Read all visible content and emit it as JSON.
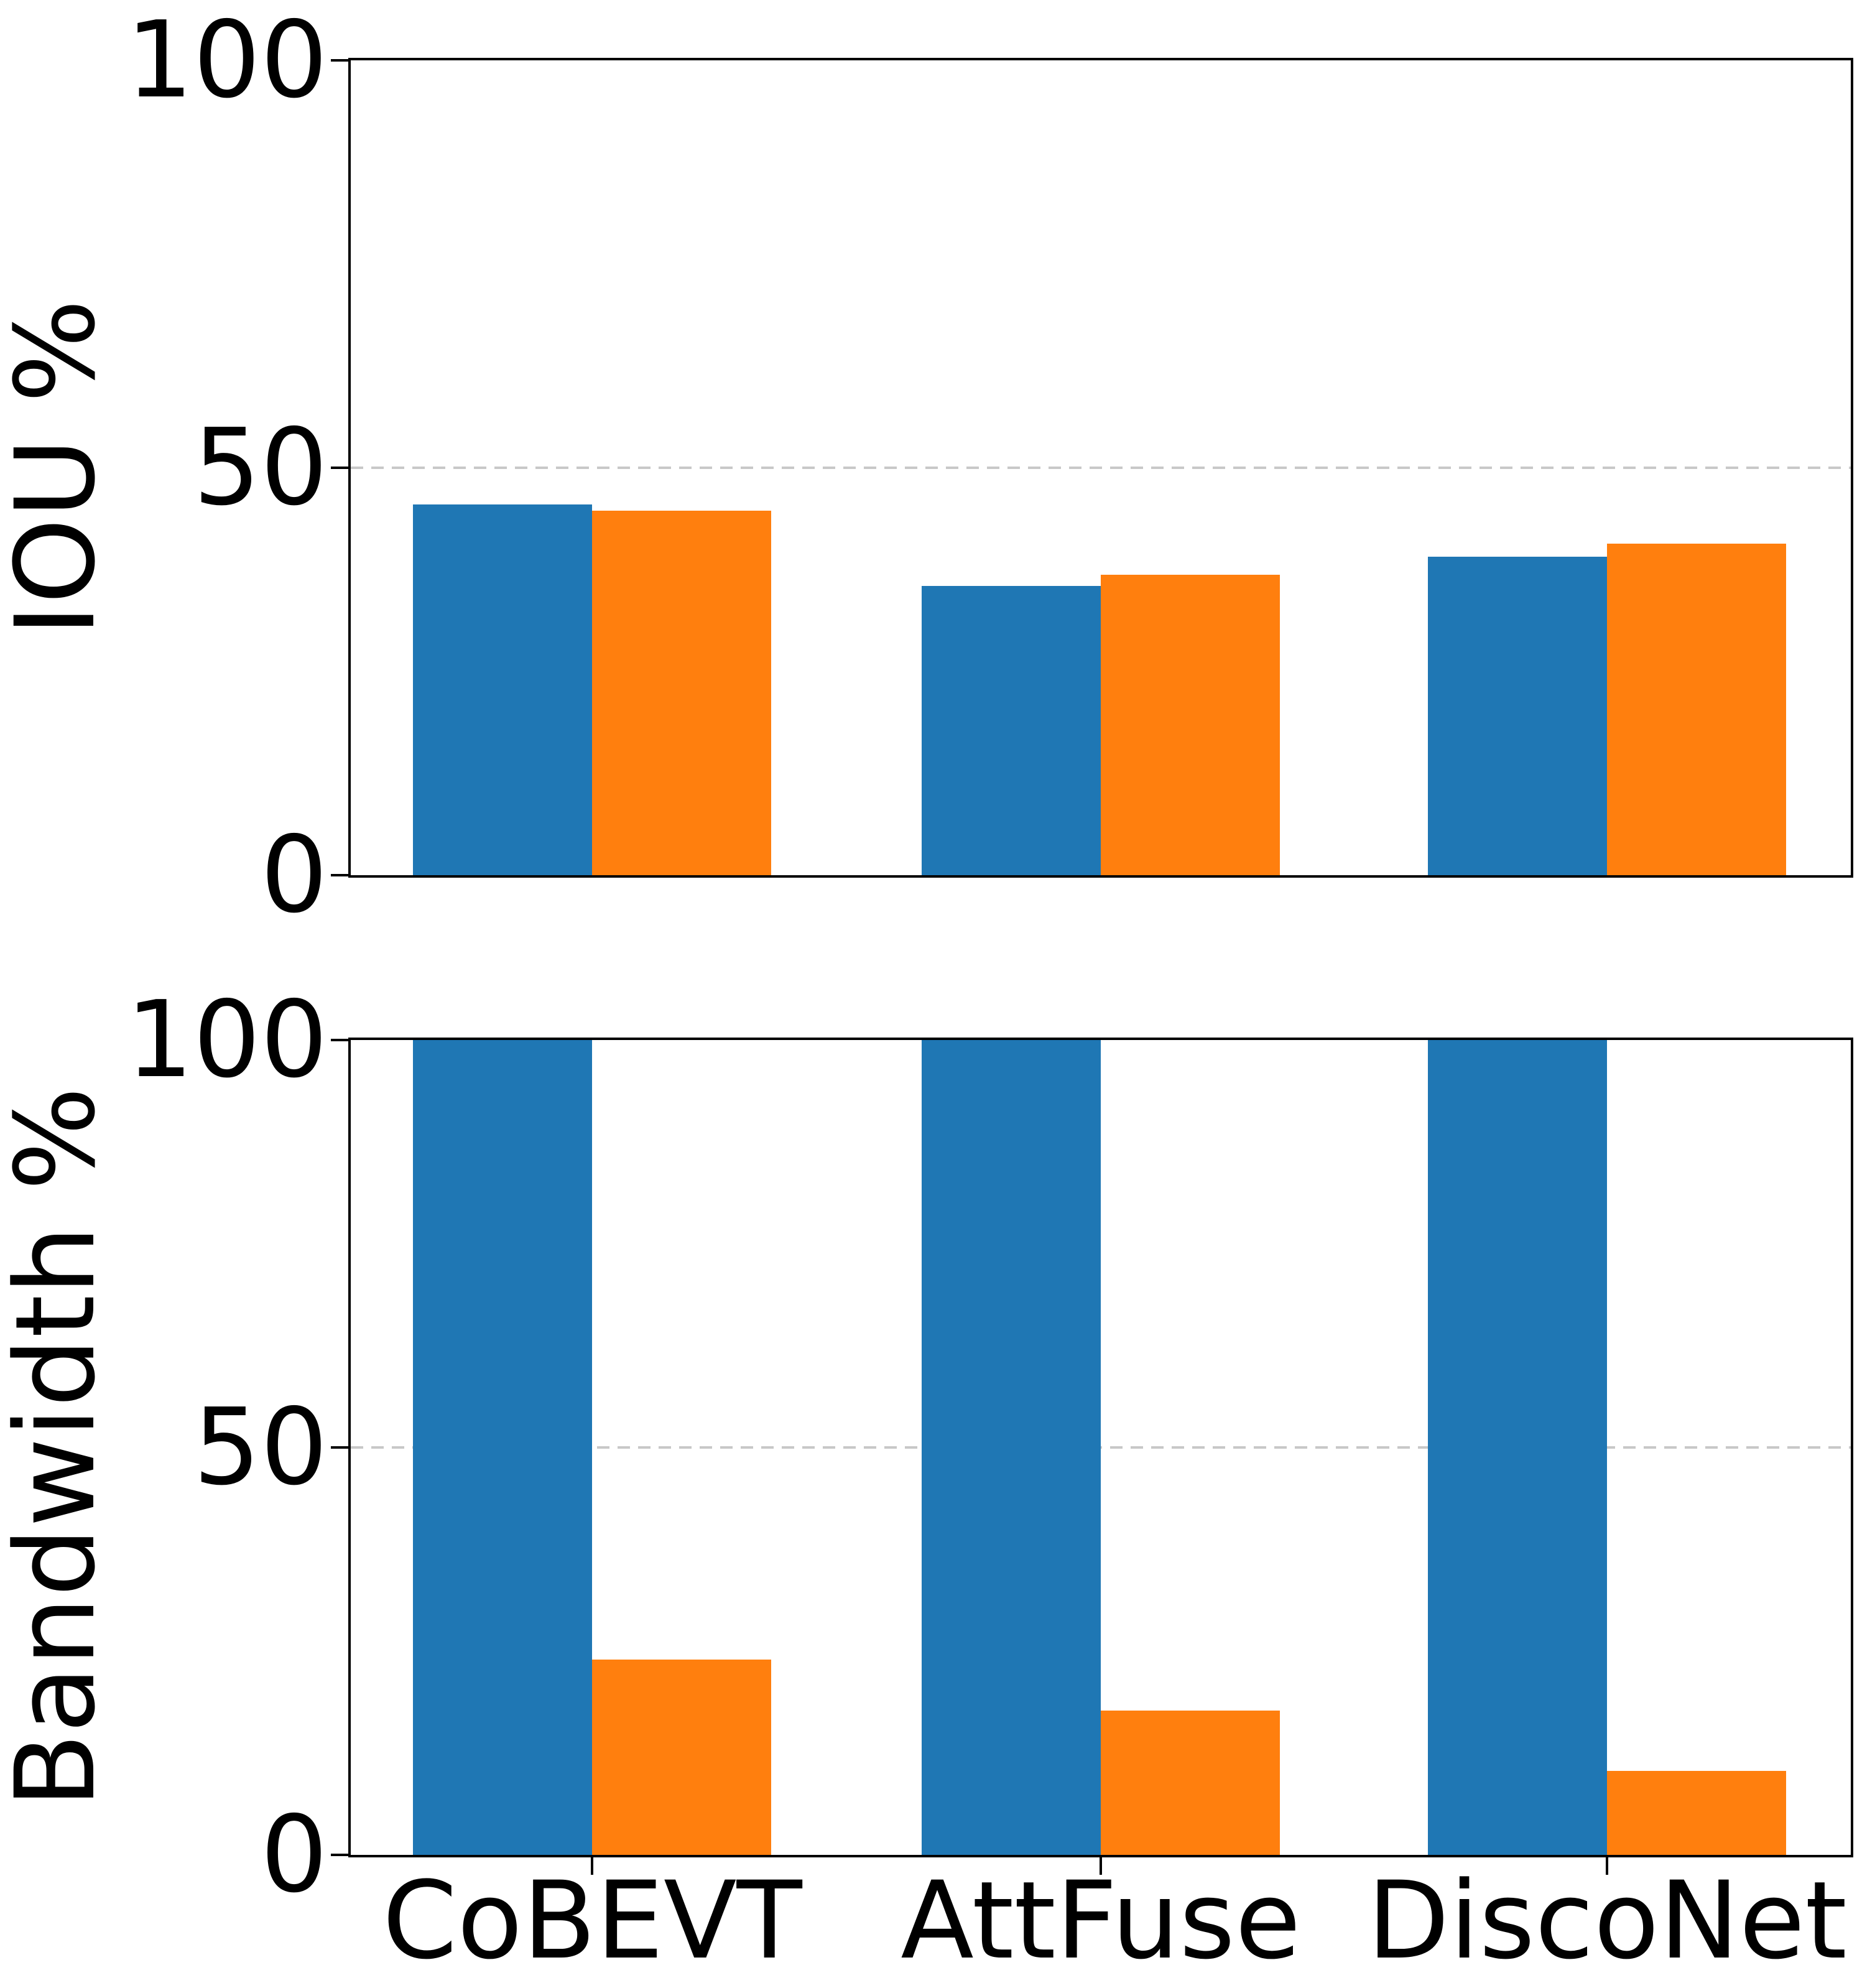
{
  "figure": {
    "background": "#ffffff"
  },
  "colors": {
    "bar_blue": "#1f77b4",
    "bar_orange": "#ff7f0e",
    "gridline": "#c8c8c8",
    "axis": "#000000"
  },
  "chart_data": [
    {
      "type": "bar",
      "title": "",
      "ylabel": "IOU %",
      "xlabel": "",
      "categories": [
        "CoBEVT",
        "AttFuse",
        "DiscoNet"
      ],
      "series": [
        {
          "name": "blue",
          "color": "#1f77b4",
          "values": [
            45.5,
            35.5,
            39.1
          ]
        },
        {
          "name": "orange",
          "color": "#ff7f0e",
          "values": [
            44.7,
            36.9,
            40.7
          ]
        }
      ],
      "ylim": [
        0,
        100
      ],
      "yticks": [
        0,
        50,
        100
      ],
      "grid": "dashed horizontal line at 50",
      "legend": "none",
      "x_tick_labels_visible": false
    },
    {
      "type": "bar",
      "title": "",
      "ylabel": "Bandwidth %",
      "xlabel": "",
      "categories": [
        "CoBEVT",
        "AttFuse",
        "DiscoNet"
      ],
      "series": [
        {
          "name": "blue",
          "color": "#1f77b4",
          "values": [
            100,
            100,
            100
          ]
        },
        {
          "name": "orange",
          "color": "#ff7f0e",
          "values": [
            24,
            17.7,
            10.3
          ]
        }
      ],
      "ylim": [
        0,
        100
      ],
      "yticks": [
        0,
        50,
        100
      ],
      "grid": "dashed horizontal line at 50",
      "legend": "none",
      "x_tick_labels_visible": true
    }
  ]
}
